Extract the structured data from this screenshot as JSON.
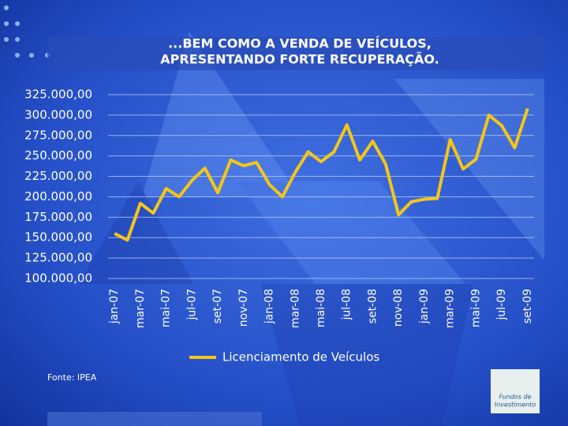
{
  "chart_data": {
    "type": "line",
    "title": [
      "...BEM COMO A VENDA DE VEÍCULOS,",
      "APRESENTANDO FORTE RECUPERAÇÃO."
    ],
    "categories": [
      "jan-07",
      null,
      "mar-07",
      null,
      "mai-07",
      null,
      "jul-07",
      null,
      "set-07",
      null,
      "nov-07",
      null,
      "jan-08",
      null,
      "mar-08",
      null,
      "mai-08",
      null,
      "jul-08",
      null,
      "set-08",
      null,
      "nov-08",
      null,
      "jan-09",
      null,
      "mar-09",
      null,
      "mai-09",
      null,
      "jul-09",
      null,
      "set-09"
    ],
    "series": [
      {
        "name": "Licenciamento de Veículos",
        "color": "#f5c518",
        "values": [
          155000,
          147000,
          192000,
          180000,
          210000,
          200000,
          220000,
          235000,
          205000,
          245000,
          238000,
          242000,
          215000,
          200000,
          230000,
          255000,
          243000,
          255000,
          288000,
          245000,
          268000,
          240000,
          178000,
          194000,
          197000,
          198000,
          270000,
          234000,
          246000,
          300000,
          287000,
          260000,
          308000
        ]
      }
    ],
    "ylim": [
      100000,
      325000
    ],
    "yticks": [
      {
        "value": 100000,
        "label": "100.000,00"
      },
      {
        "value": 125000,
        "label": "125.000,00"
      },
      {
        "value": 150000,
        "label": "150.000,00"
      },
      {
        "value": 175000,
        "label": "175.000,00"
      },
      {
        "value": 200000,
        "label": "200.000,00"
      },
      {
        "value": 225000,
        "label": "225.000,00"
      },
      {
        "value": 250000,
        "label": "250.000,00"
      },
      {
        "value": 275000,
        "label": "275.000,00"
      },
      {
        "value": 300000,
        "label": "300.000,00"
      },
      {
        "value": 325000,
        "label": "325.000,00"
      }
    ],
    "grid": true,
    "legend": "bottom"
  },
  "source": "Fonte: IPEA",
  "logo": [
    "Fundos de",
    "Investimento"
  ]
}
